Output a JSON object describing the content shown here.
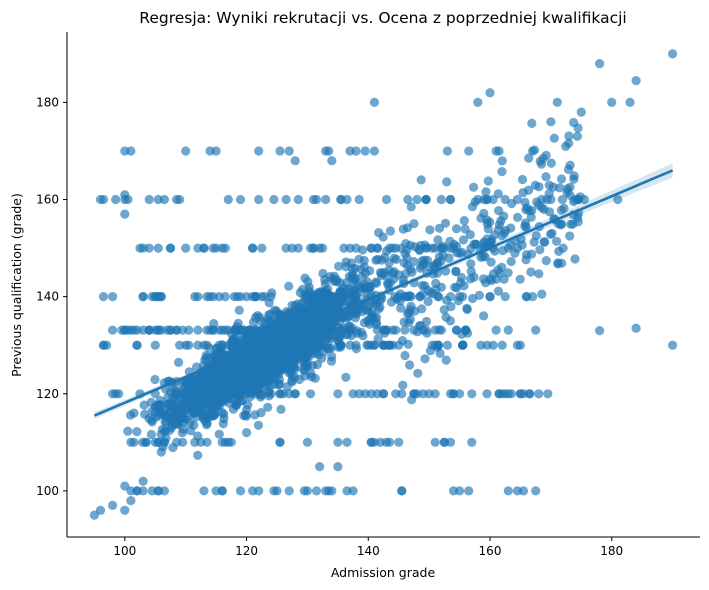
{
  "chart_data": {
    "type": "scatter",
    "title": "Regresja: Wyniki rekrutacji vs. Ocena z poprzedniej kwalifikacji",
    "xlabel": "Admission grade",
    "ylabel": "Previous qualification (grade)",
    "xlim": [
      90.5,
      194.5
    ],
    "ylim": [
      90.5,
      194.5
    ],
    "x_ticks": [
      100,
      120,
      140,
      160,
      180
    ],
    "y_ticks": [
      100,
      120,
      140,
      160,
      180
    ],
    "grid": false,
    "legend": "none",
    "colors": {
      "points": "#1f77b4",
      "regression_line": "#1f77b4",
      "confidence_band": "#1f77b4"
    },
    "point_alpha": 0.65,
    "regression": {
      "x": [
        95,
        190
      ],
      "y": [
        115.5,
        166
      ],
      "ci_half_width_at_extremes": 1.5,
      "ci_half_width_at_mean": 0.4
    },
    "point_bands": [
      {
        "y": 133.1,
        "x_range": [
          95,
          124
        ],
        "density": 1.0
      },
      {
        "y": 133.1,
        "x_range": [
          124,
          170
        ],
        "density": 0.45
      },
      {
        "y": 130,
        "x_range": [
          96,
          165
        ],
        "density": 0.55
      },
      {
        "y": 140,
        "x_range": [
          96,
          168
        ],
        "density": 0.5
      },
      {
        "y": 120,
        "x_range": [
          96,
          170
        ],
        "density": 0.5
      },
      {
        "y": 150,
        "x_range": [
          100,
          165
        ],
        "density": 0.45
      },
      {
        "y": 160,
        "x_range": [
          96,
          176
        ],
        "density": 0.35
      },
      {
        "y": 110,
        "x_range": [
          100,
          162
        ],
        "density": 0.35
      },
      {
        "y": 100,
        "x_range": [
          100,
          170
        ],
        "density": 0.3
      },
      {
        "y": 170,
        "x_range": [
          100,
          170
        ],
        "density": 0.1
      }
    ],
    "points": [
      {
        "x": 95,
        "y": 95
      },
      {
        "x": 96,
        "y": 96
      },
      {
        "x": 98,
        "y": 97
      },
      {
        "x": 100,
        "y": 96
      },
      {
        "x": 101,
        "y": 98
      },
      {
        "x": 100,
        "y": 101
      },
      {
        "x": 102,
        "y": 100
      },
      {
        "x": 103,
        "y": 102
      },
      {
        "x": 190,
        "y": 190
      },
      {
        "x": 190,
        "y": 130
      },
      {
        "x": 184,
        "y": 184.5
      },
      {
        "x": 184,
        "y": 133.5
      },
      {
        "x": 178,
        "y": 188
      },
      {
        "x": 180,
        "y": 180
      },
      {
        "x": 183,
        "y": 180
      },
      {
        "x": 181,
        "y": 160
      },
      {
        "x": 178,
        "y": 133
      },
      {
        "x": 175,
        "y": 178
      },
      {
        "x": 172,
        "y": 150
      },
      {
        "x": 170,
        "y": 176
      },
      {
        "x": 167,
        "y": 170
      },
      {
        "x": 160,
        "y": 182
      },
      {
        "x": 158,
        "y": 180
      },
      {
        "x": 141,
        "y": 180
      },
      {
        "x": 96,
        "y": 160
      },
      {
        "x": 100,
        "y": 170
      },
      {
        "x": 101,
        "y": 170
      },
      {
        "x": 100,
        "y": 161
      },
      {
        "x": 100,
        "y": 157
      },
      {
        "x": 114,
        "y": 170
      },
      {
        "x": 115,
        "y": 170
      },
      {
        "x": 127,
        "y": 170
      },
      {
        "x": 128,
        "y": 168
      },
      {
        "x": 134,
        "y": 168
      },
      {
        "x": 137,
        "y": 170
      },
      {
        "x": 141,
        "y": 170
      },
      {
        "x": 132,
        "y": 105
      },
      {
        "x": 135,
        "y": 105
      },
      {
        "x": 120,
        "y": 112
      },
      {
        "x": 106,
        "y": 108
      }
    ]
  }
}
